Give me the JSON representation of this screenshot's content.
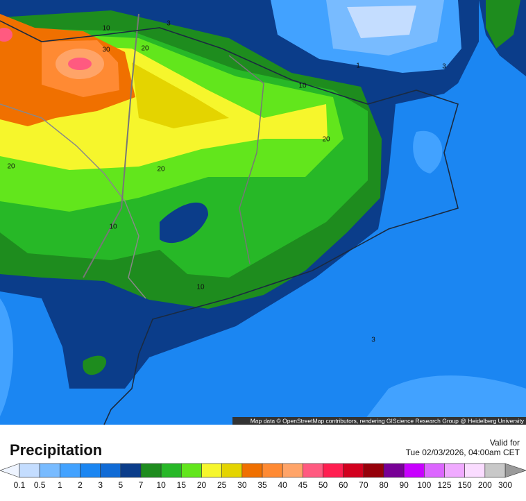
{
  "map": {
    "contour_labels": [
      "10",
      "3",
      "30",
      "20",
      "1",
      "3",
      "10",
      "20",
      "20",
      "20",
      "10",
      "10",
      "3"
    ],
    "attribution": "Map data © OpenStreetMap contributors, rendering GIScience Research Group @ Heidelberg University"
  },
  "header": {
    "title": "Precipitation",
    "valid_label": "Valid for",
    "valid_time": "Tue 02/03/2026, 04:00am CET"
  },
  "legend": {
    "ticks": [
      0.1,
      0.5,
      1,
      2,
      3,
      5,
      7,
      10,
      15,
      20,
      25,
      30,
      35,
      40,
      45,
      50,
      60,
      70,
      80,
      90,
      100,
      125,
      150,
      200,
      300
    ],
    "colors": [
      "#c4ddff",
      "#78bbff",
      "#42a2ff",
      "#1b86f2",
      "#106bd6",
      "#0b3d8a",
      "#1e8c1e",
      "#27b827",
      "#62e61c",
      "#f6f62c",
      "#e4d400",
      "#f07000",
      "#ff8a33",
      "#ffa468",
      "#ff5a80",
      "#ff1e50",
      "#d2001e",
      "#96000a",
      "#780096",
      "#c800ff",
      "#dc66ff",
      "#f0aaff",
      "#fadcff",
      "#c8c8c8"
    ],
    "under_color": "#eef4ff",
    "over_color": "#9a9a9a"
  }
}
